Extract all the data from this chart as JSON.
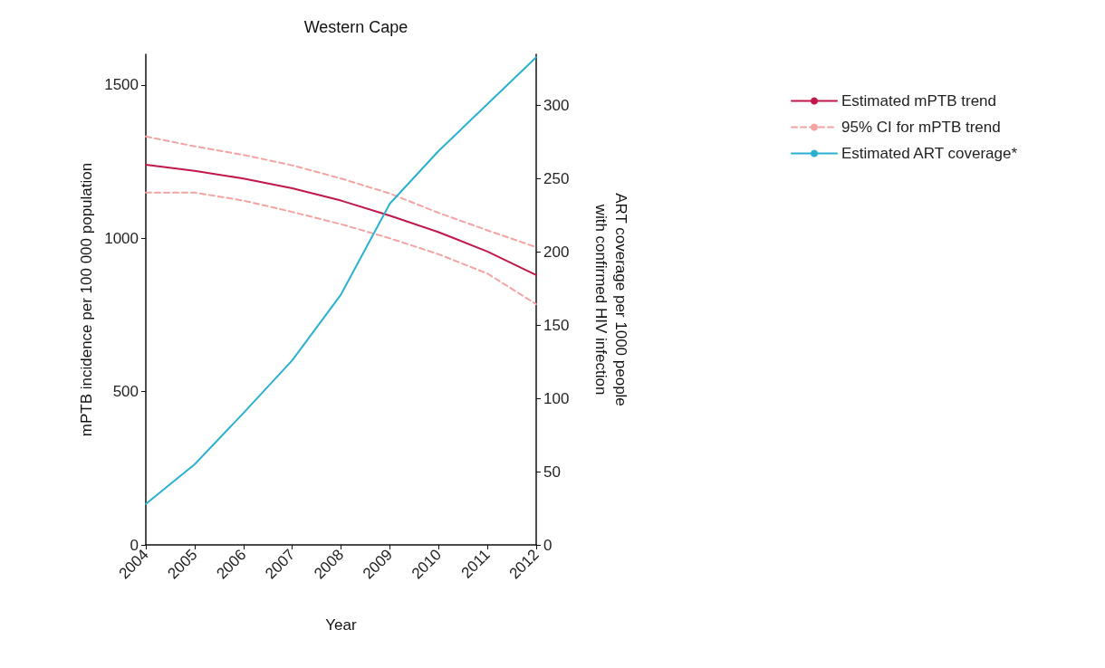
{
  "chart_data": {
    "type": "line",
    "title": "Western Cape",
    "xlabel": "Year",
    "ylabel": "mPTB incidence per 100 000 population",
    "y2label": "ART coverage per 1000 people with confirmed HIV infection",
    "x": [
      2004,
      2005,
      2006,
      2007,
      2008,
      2009,
      2010,
      2011,
      2012
    ],
    "xlim": [
      2004,
      2012
    ],
    "xticks": [
      2004,
      2005,
      2006,
      2007,
      2008,
      2009,
      2010,
      2011,
      2012
    ],
    "ylim": [
      0,
      1600
    ],
    "yticks": [
      0,
      500,
      1000,
      1500
    ],
    "y2lim": [
      0,
      335
    ],
    "y2ticks": [
      0,
      50,
      100,
      150,
      200,
      250,
      300
    ],
    "grid": false,
    "legend": "top right",
    "marker": "none",
    "series": [
      {
        "name": "Estimated mPTB trend",
        "color": "#c0184a",
        "line_style": "solid",
        "values": [
          1240,
          1220,
          1195,
          1163,
          1123,
          1074,
          1020,
          957,
          880
        ]
      },
      {
        "name": "95% CI for mPTB trend",
        "color": "#f4a3a3",
        "line_style": "dashed",
        "values": [
          1332,
          1300,
          1272,
          1238,
          1195,
          1146,
          1083,
          1026,
          971
        ]
      },
      {
        "color": "#f4a3a3",
        "line_style": "dashed",
        "values": [
          1149,
          1149,
          1123,
          1086,
          1046,
          1000,
          948,
          885,
          785
        ]
      },
      {
        "name": "Estimated ART coverage*",
        "color": "#2ab0d0",
        "line_style": "solid",
        "axis": "y2",
        "values": [
          28,
          55,
          90,
          126,
          171,
          233,
          269,
          301,
          333
        ]
      }
    ]
  }
}
